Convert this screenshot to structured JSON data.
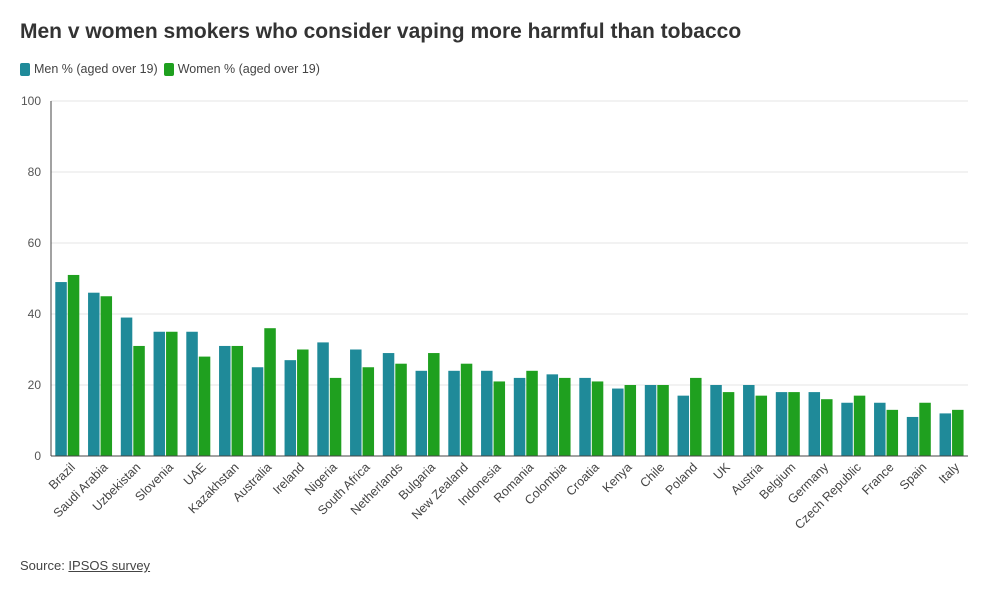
{
  "title": "Men v women smokers who consider vaping more harmful than tobacco",
  "source": {
    "label": "Source: ",
    "link_text": "IPSOS survey"
  },
  "colors": {
    "men": "#1f8a99",
    "women": "#1fa01f",
    "grid": "#e6e6e6",
    "axis": "#444444"
  },
  "chart_data": {
    "type": "bar",
    "title": "Men v women smokers who consider vaping more harmful than tobacco",
    "xlabel": "",
    "ylabel": "",
    "ylim": [
      0,
      100
    ],
    "yticks": [
      0,
      20,
      40,
      60,
      80,
      100
    ],
    "grid": true,
    "legend_position": "top-left",
    "categories": [
      "Brazil",
      "Saudi Arabia",
      "Uzbekistan",
      "Slovenia",
      "UAE",
      "Kazakhstan",
      "Australia",
      "Ireland",
      "Nigeria",
      "South Africa",
      "Netherlands",
      "Bulgaria",
      "New Zealand",
      "Indonesia",
      "Romania",
      "Colombia",
      "Croatia",
      "Kenya",
      "Chile",
      "Poland",
      "UK",
      "Austria",
      "Belgium",
      "Germany",
      "Czech Republic",
      "France",
      "Spain",
      "Italy"
    ],
    "series": [
      {
        "name": "Men % (aged over 19)",
        "values": [
          49,
          46,
          39,
          35,
          35,
          31,
          25,
          27,
          32,
          30,
          29,
          24,
          24,
          24,
          22,
          23,
          22,
          19,
          20,
          17,
          20,
          20,
          18,
          18,
          15,
          15,
          11,
          12
        ]
      },
      {
        "name": "Women % (aged over 19)",
        "values": [
          51,
          45,
          31,
          35,
          28,
          31,
          36,
          30,
          22,
          25,
          26,
          29,
          26,
          21,
          24,
          22,
          21,
          20,
          20,
          22,
          18,
          17,
          18,
          16,
          17,
          13,
          15,
          13
        ]
      }
    ]
  }
}
